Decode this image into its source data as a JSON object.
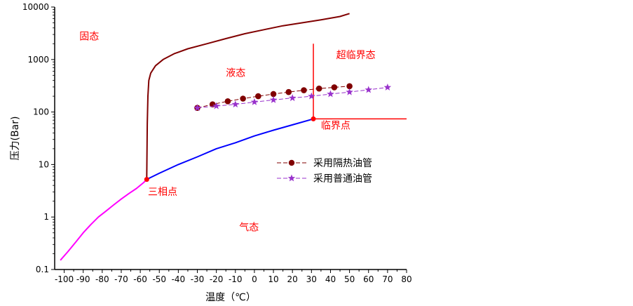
{
  "chart_data": {
    "type": "line",
    "xlabel": "温度（℃）",
    "ylabel": "压力(Bar)",
    "xlim": [
      -105,
      80
    ],
    "ylim": [
      0.1,
      10000
    ],
    "yscale": "log",
    "x_ticks": [
      "-100",
      "-90",
      "-80",
      "-70",
      "-60",
      "-50",
      "-40",
      "-30",
      "-20",
      "-10",
      "0",
      "10",
      "20",
      "30",
      "40",
      "50",
      "60",
      "70",
      "80"
    ],
    "y_ticks": [
      "0.1",
      "1",
      "10",
      "100",
      "1000",
      "10000"
    ],
    "annotations": [
      {
        "text": "固态",
        "x": -92,
        "y": 2400,
        "color": "#ff0000"
      },
      {
        "text": "液态",
        "x": -15,
        "y": 480,
        "color": "#ff0000"
      },
      {
        "text": "超临界态",
        "x": 43,
        "y": 1050,
        "color": "#ff0000"
      },
      {
        "text": "临界点",
        "x": 35,
        "y": 48,
        "color": "#ff0000"
      },
      {
        "text": "三相点",
        "x": -56,
        "y": 2.6,
        "color": "#ff0000"
      },
      {
        "text": "气态",
        "x": -8,
        "y": 0.55,
        "color": "#ff0000"
      }
    ],
    "colors": {
      "sublimation": "#ff00ff",
      "vaporization": "#0000ff",
      "melting": "#800000",
      "critical_lines": "#ff0000",
      "insulated": "#800000",
      "ordinary": "#9932cc"
    },
    "curves": [
      {
        "key": "sublimation",
        "x": [
          -102,
          -98,
          -94,
          -90,
          -86,
          -82,
          -78,
          -74,
          -70,
          -66,
          -62,
          -58,
          -56.6
        ],
        "y": [
          0.15,
          0.22,
          0.33,
          0.5,
          0.72,
          1.0,
          1.3,
          1.7,
          2.2,
          2.8,
          3.5,
          4.6,
          5.2
        ]
      },
      {
        "key": "vaporization",
        "x": [
          -56.6,
          -50,
          -40,
          -30,
          -20,
          -10,
          0,
          10,
          20,
          31
        ],
        "y": [
          5.2,
          6.8,
          10,
          14,
          20,
          26,
          35,
          45,
          57,
          74
        ]
      },
      {
        "key": "melting",
        "x": [
          -56.6,
          -56.3,
          -56,
          -55.5,
          -54.5,
          -52,
          -48,
          -42,
          -35,
          -25,
          -15,
          -5,
          5,
          15,
          25,
          35,
          45,
          50
        ],
        "y": [
          5.2,
          60,
          200,
          400,
          550,
          760,
          1000,
          1300,
          1600,
          2000,
          2500,
          3100,
          3700,
          4400,
          5000,
          5700,
          6600,
          7500
        ]
      },
      {
        "key": "critical_lines",
        "x": [
          31,
          31,
          31,
          80
        ],
        "y": [
          2000,
          74,
          74,
          74
        ]
      }
    ],
    "series": [
      {
        "name": "采用隔热油管",
        "x": [
          -30,
          -22,
          -14,
          -6,
          2,
          10,
          18,
          26,
          34,
          42,
          50
        ],
        "y": [
          120,
          140,
          160,
          180,
          200,
          220,
          240,
          260,
          280,
          295,
          310
        ]
      },
      {
        "name": "采用普通油管",
        "x": [
          -30,
          -20,
          -10,
          0,
          10,
          20,
          30,
          40,
          50,
          60,
          70
        ],
        "y": [
          120,
          130,
          140,
          155,
          170,
          185,
          200,
          220,
          240,
          265,
          295
        ]
      }
    ],
    "points": [
      {
        "x": -56.6,
        "y": 5.2,
        "color": "#ff0000"
      },
      {
        "x": 31,
        "y": 74,
        "color": "#ff0000"
      }
    ],
    "legend": {
      "placement": "right",
      "items": [
        {
          "label": "采用隔热油管",
          "marker": "circle",
          "color": "#800000"
        },
        {
          "label": "采用普通油管",
          "marker": "star",
          "color": "#9932cc"
        }
      ]
    }
  }
}
